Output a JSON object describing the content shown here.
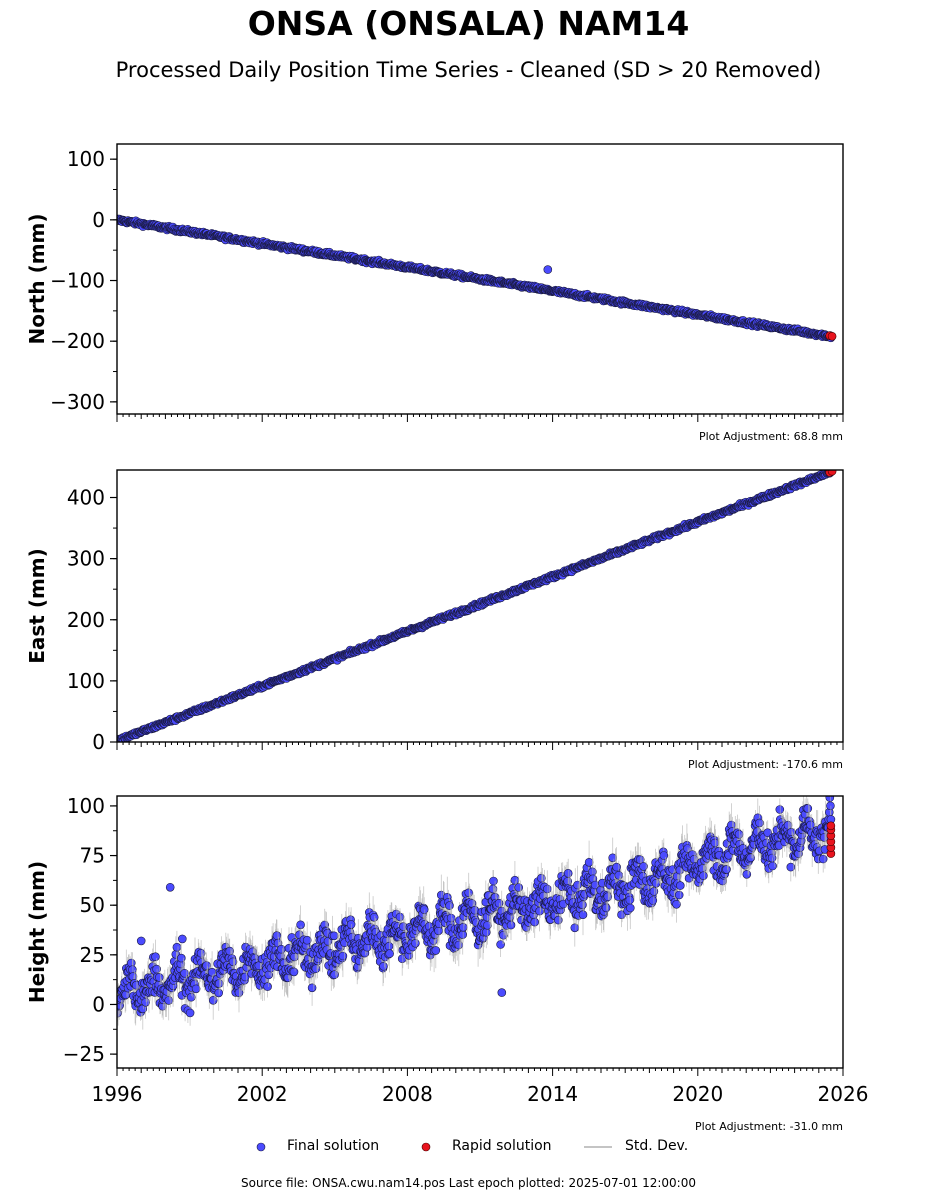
{
  "title": "ONSA (ONSALA) NAM14",
  "subtitle": "Processed Daily Position Time Series - Cleaned (SD > 20 Removed)",
  "footer": "Source file: ONSA.cwu.nam14.pos  Last epoch plotted: 2025-07-01 12:00:00",
  "legend": {
    "final": "Final solution",
    "rapid": "Rapid solution",
    "std": "Std. Dev."
  },
  "colors": {
    "final": "#4b4bff",
    "rapid": "#e8141e",
    "std": "#b0b0b0"
  },
  "chart_data": [
    {
      "type": "scatter",
      "ylabel": "North (mm)",
      "ylim": [
        -320,
        125
      ],
      "yticks": [
        100,
        0,
        -100,
        -200,
        -300
      ],
      "adjustment": "Plot Adjustment: 68.8 mm",
      "xlim": [
        1996,
        2026
      ],
      "xticks": [
        1996,
        2002,
        2008,
        2014,
        2020,
        2026
      ],
      "show_xticklabels": false,
      "trend": {
        "x": [
          1996.0,
          2025.5
        ],
        "y": [
          0,
          -192
        ]
      },
      "outliers": [
        {
          "x": 2013.8,
          "y": -82
        }
      ],
      "rapid_points": [
        {
          "x": 2025.45,
          "y": -191
        },
        {
          "x": 2025.55,
          "y": -192
        }
      ]
    },
    {
      "type": "scatter",
      "ylabel": "East (mm)",
      "ylim": [
        0,
        445
      ],
      "yticks": [
        400,
        300,
        200,
        100,
        0
      ],
      "adjustment": "Plot Adjustment: -170.6 mm",
      "xlim": [
        1996,
        2026
      ],
      "xticks": [
        1996,
        2002,
        2008,
        2014,
        2020,
        2026
      ],
      "show_xticklabels": false,
      "trend": {
        "x": [
          1996.0,
          2025.5
        ],
        "y": [
          2,
          442
        ]
      },
      "outliers": [],
      "rapid_points": [
        {
          "x": 2025.45,
          "y": 441
        },
        {
          "x": 2025.55,
          "y": 443
        }
      ]
    },
    {
      "type": "scatter",
      "ylabel": "Height (mm)",
      "ylim": [
        -32,
        105
      ],
      "yticks": [
        100,
        75,
        50,
        25,
        0,
        -25
      ],
      "adjustment": "Plot Adjustment: -31.0 mm",
      "xlim": [
        1996,
        2026
      ],
      "xticks": [
        1996,
        2002,
        2008,
        2014,
        2020,
        2026
      ],
      "xticklabels": [
        "1996",
        "2002",
        "2008",
        "2014",
        "2020",
        "2026"
      ],
      "show_xticklabels": true,
      "trend": {
        "x": [
          1996.0,
          2025.5
        ],
        "y": [
          5,
          82
        ]
      },
      "outliers": [
        {
          "x": 1998.2,
          "y": 59
        },
        {
          "x": 2011.9,
          "y": 6
        },
        {
          "x": 1998.7,
          "y": 33
        },
        {
          "x": 1997.0,
          "y": 32
        }
      ],
      "rapid_points": [
        {
          "x": 2025.5,
          "y": 76
        },
        {
          "x": 2025.5,
          "y": 79
        },
        {
          "x": 2025.5,
          "y": 82
        },
        {
          "x": 2025.5,
          "y": 85
        },
        {
          "x": 2025.5,
          "y": 88
        },
        {
          "x": 2025.5,
          "y": 90
        }
      ]
    }
  ]
}
